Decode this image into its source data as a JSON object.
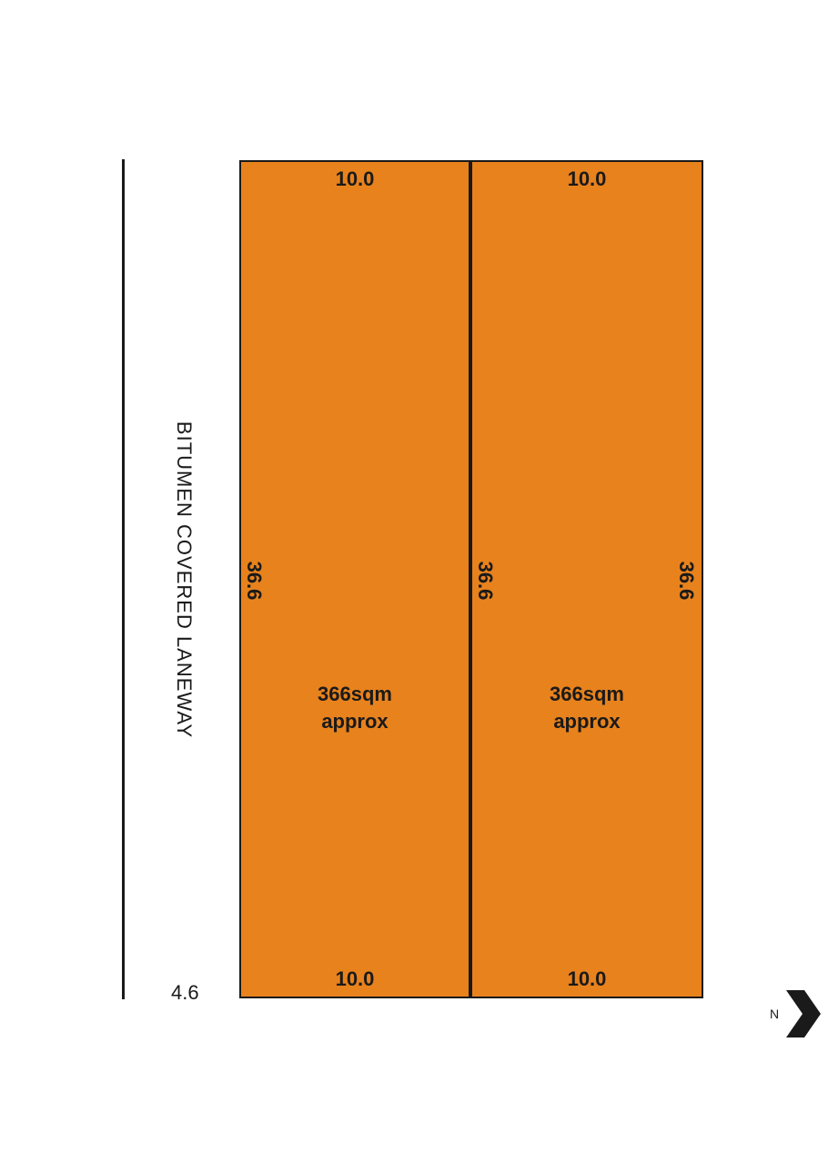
{
  "laneway": {
    "label": "BITUMEN COVERED LANEWAY",
    "width": "4.6"
  },
  "lots": [
    {
      "top": "10.0",
      "bottom": "10.0",
      "left_side": "36.6",
      "area_line1": "366sqm",
      "area_line2": "approx"
    },
    {
      "top": "10.0",
      "bottom": "10.0",
      "left_side": "36.6",
      "right_side": "36.6",
      "area_line1": "366sqm",
      "area_line2": "approx"
    }
  ],
  "north": {
    "letter": "N",
    "icon": "north-arrow-icon"
  },
  "colors": {
    "lot_fill": "#e8821d",
    "line": "#1a1a1a"
  }
}
